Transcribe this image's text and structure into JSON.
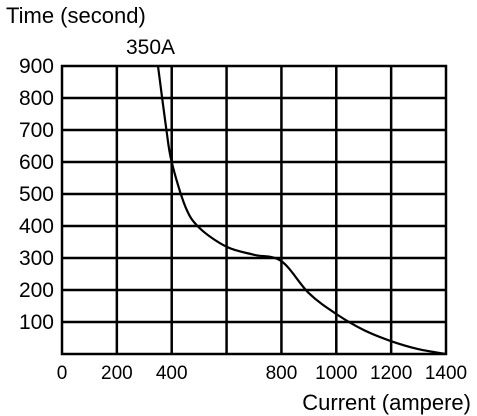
{
  "chart_data": {
    "type": "line",
    "title": "",
    "ylabel": "Time (second)",
    "xlabel": "Current (ampere)",
    "xlim": [
      0,
      1400
    ],
    "ylim": [
      0,
      900
    ],
    "x_ticks": [
      "0",
      "200",
      "400",
      "800",
      "1000",
      "1200",
      "1400"
    ],
    "x_tick_values": [
      0,
      200,
      400,
      800,
      1000,
      1200,
      1400
    ],
    "y_ticks": [
      "100",
      "200",
      "300",
      "400",
      "500",
      "600",
      "700",
      "800",
      "900"
    ],
    "y_tick_values": [
      100,
      200,
      300,
      400,
      500,
      600,
      700,
      800,
      900
    ],
    "grid": true,
    "legend": "none",
    "annotation": {
      "text": "350A",
      "x": 350,
      "y": 900
    },
    "series": [
      {
        "x": [
          350,
          380,
          400,
          450,
          500,
          600,
          700,
          800,
          900,
          1000,
          1100,
          1200,
          1300,
          1400
        ],
        "y": [
          900,
          705,
          600,
          460,
          395,
          335,
          310,
          290,
          190,
          125,
          75,
          40,
          15,
          0
        ],
        "color": "#000000"
      }
    ]
  }
}
